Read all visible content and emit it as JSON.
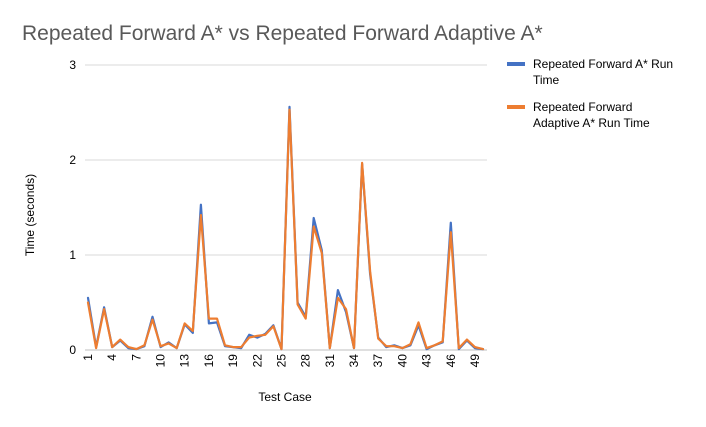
{
  "chart_data": {
    "type": "line",
    "title": "Repeated Forward A* vs Repeated Forward Adaptive A*",
    "xlabel": "Test Case",
    "ylabel": "Time (seconds)",
    "ylim": [
      0,
      3
    ],
    "yticks": [
      0,
      1,
      2,
      3
    ],
    "x": [
      1,
      2,
      3,
      4,
      5,
      6,
      7,
      8,
      9,
      10,
      11,
      12,
      13,
      14,
      15,
      16,
      17,
      18,
      19,
      20,
      21,
      22,
      23,
      24,
      25,
      26,
      27,
      28,
      29,
      30,
      31,
      32,
      33,
      34,
      35,
      36,
      37,
      38,
      39,
      40,
      41,
      42,
      43,
      44,
      45,
      46,
      47,
      48,
      49,
      50
    ],
    "xtick_labels": [
      "1",
      "4",
      "7",
      "10",
      "13",
      "16",
      "19",
      "22",
      "25",
      "28",
      "31",
      "34",
      "37",
      "40",
      "43",
      "46",
      "49"
    ],
    "grid": true,
    "legend_position": "right",
    "series": [
      {
        "name": "Repeated Forward A* Run Time",
        "color": "#4472C4",
        "values": [
          0.55,
          0.03,
          0.45,
          0.03,
          0.1,
          0.02,
          0.01,
          0.04,
          0.35,
          0.03,
          0.08,
          0.02,
          0.27,
          0.18,
          1.53,
          0.28,
          0.29,
          0.04,
          0.03,
          0.02,
          0.16,
          0.13,
          0.17,
          0.26,
          0.01,
          2.56,
          0.5,
          0.35,
          1.39,
          1.05,
          0.02,
          0.63,
          0.4,
          0.02,
          1.96,
          0.8,
          0.13,
          0.03,
          0.05,
          0.02,
          0.05,
          0.26,
          0.01,
          0.05,
          0.08,
          1.34,
          0.01,
          0.1,
          0.02,
          0.01
        ]
      },
      {
        "name": "Repeated Forward Adaptive A* Run Time",
        "color": "#ED7D31",
        "values": [
          0.5,
          0.02,
          0.43,
          0.03,
          0.11,
          0.03,
          0.01,
          0.05,
          0.32,
          0.04,
          0.07,
          0.02,
          0.28,
          0.2,
          1.42,
          0.33,
          0.33,
          0.05,
          0.03,
          0.03,
          0.13,
          0.15,
          0.16,
          0.25,
          0.01,
          2.53,
          0.48,
          0.33,
          1.3,
          1.02,
          0.02,
          0.55,
          0.43,
          0.02,
          1.97,
          0.83,
          0.12,
          0.04,
          0.04,
          0.02,
          0.06,
          0.29,
          0.02,
          0.05,
          0.09,
          1.24,
          0.02,
          0.11,
          0.03,
          0.01
        ]
      }
    ]
  }
}
